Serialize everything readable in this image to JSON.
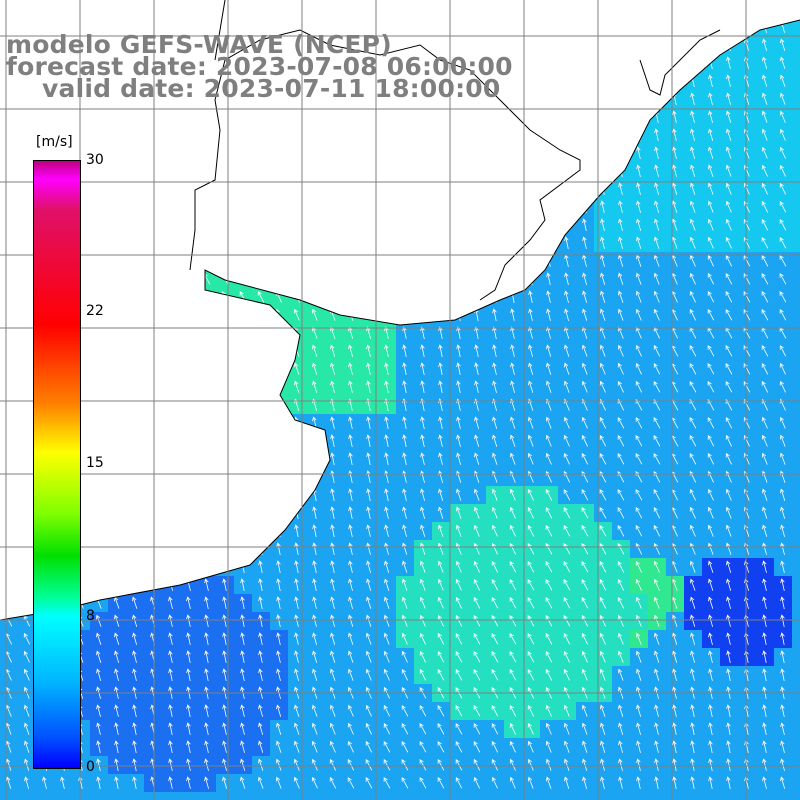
{
  "header": {
    "model": "modelo GEFS-WAVE (NCEP)",
    "forecast": "forecast date: 2023-07-08 06:00:00",
    "valid": "valid date: 2023-07-11 18:00:00"
  },
  "colorbar": {
    "unit": "[m/s]",
    "ticks": [
      "30",
      "22",
      "15",
      "8",
      "0"
    ],
    "range": [
      0,
      30
    ],
    "colors": [
      "#0000ff",
      "#00b4ff",
      "#00ffff",
      "#00e000",
      "#ffff00",
      "#ff8000",
      "#ff0000",
      "#c0007f"
    ]
  },
  "map": {
    "ocean_color": "#1e9bf0",
    "land_color": "#ffffff",
    "grid_color": "#7f7f7f",
    "arrow_color": "#ffffff",
    "grid_lines_shown": true
  }
}
